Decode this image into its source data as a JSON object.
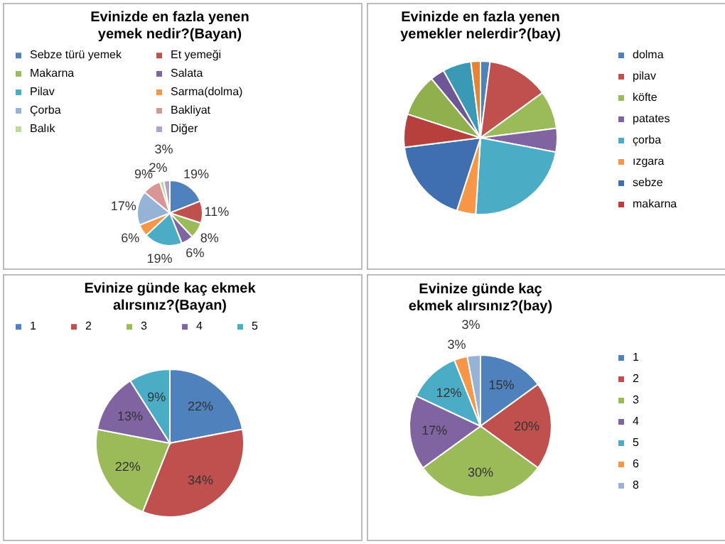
{
  "chart_data": [
    {
      "type": "pie",
      "title": "Evinizde en fazla yenen yemek nedir?(Bayan)",
      "categories": [
        "Sebze türü yemek",
        "Et yemeği",
        "Makarna",
        "Salata",
        "Pilav",
        "Sarma(dolma)",
        "Çorba",
        "Bakliyat",
        "Balık",
        "Diğer"
      ],
      "values": [
        19,
        11,
        8,
        6,
        19,
        6,
        17,
        9,
        2,
        3
      ],
      "value_labels": [
        "19%",
        "11%",
        "8%",
        "6%",
        "19%",
        "6%",
        "17%",
        "9%",
        "2%",
        "3%"
      ],
      "colors": [
        "#4f81bd",
        "#c0504d",
        "#9bbb59",
        "#8064a2",
        "#4bacc6",
        "#f79646",
        "#95b3d7",
        "#d99694",
        "#c3d69b",
        "#b2a2c7"
      ],
      "legend": "top"
    },
    {
      "type": "pie",
      "title": "Evinizde en fazla yenen yemekler nelerdir?(bay)",
      "categories": [
        "dolma",
        "pilav",
        "köfte",
        "patates",
        "çorba",
        "ızgara",
        "sebze",
        "makarna",
        null,
        null,
        null,
        null
      ],
      "values": [
        2,
        13,
        8,
        5,
        23,
        4,
        18,
        7,
        9,
        3,
        6,
        2
      ],
      "colors": [
        "#4f81bd",
        "#c0504d",
        "#9bbb59",
        "#8064a2",
        "#4bacc6",
        "#f79646",
        "#3f6fb0",
        "#b8403c",
        "#8fb04c",
        "#6f5696",
        "#3a9ab5",
        "#e88430"
      ],
      "legend": "right"
    },
    {
      "type": "pie",
      "title": "Evinize günde kaç ekmek alırsınız?(Bayan)",
      "categories": [
        "1",
        "2",
        "3",
        "4",
        "5"
      ],
      "values": [
        22,
        34,
        22,
        13,
        9
      ],
      "value_labels": [
        "22%",
        "34%",
        "22%",
        "13%",
        "9%"
      ],
      "colors": [
        "#4f81bd",
        "#c0504d",
        "#9bbb59",
        "#8064a2",
        "#4bacc6"
      ],
      "legend": "top"
    },
    {
      "type": "pie",
      "title": "Evinize günde kaç ekmek alırsınız?(bay)",
      "categories": [
        "1",
        "2",
        "3",
        "4",
        "5",
        "6",
        "8"
      ],
      "values": [
        15,
        20,
        30,
        17,
        12,
        3,
        3
      ],
      "value_labels": [
        "15%",
        "20%",
        "30%",
        "17%",
        "12%",
        "3%",
        "3%"
      ],
      "colors": [
        "#4f81bd",
        "#c0504d",
        "#9bbb59",
        "#8064a2",
        "#4bacc6",
        "#f79646",
        "#95b3d7"
      ],
      "legend": "right"
    }
  ]
}
